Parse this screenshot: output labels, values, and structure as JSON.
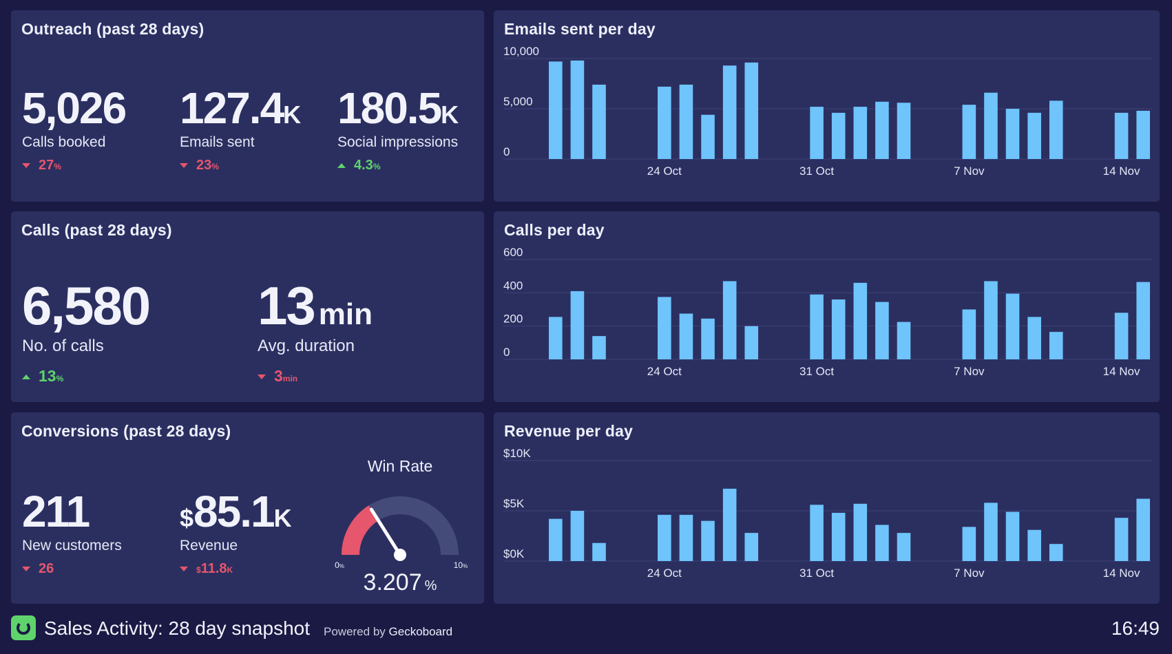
{
  "colors": {
    "background": "#1b1a45",
    "panel": "#2b2f60",
    "bar": "#6ec4fb",
    "negative": "#e6566c",
    "positive": "#5fd36b",
    "gauge_fill": "#e6566c",
    "gauge_track": "#454b79"
  },
  "outreach": {
    "title": "Outreach (past 28 days)",
    "metrics": [
      {
        "value": "5,026",
        "unit": "",
        "label": "Calls booked",
        "delta": "27",
        "delta_unit": "%",
        "direction": "down"
      },
      {
        "value": "127.4",
        "unit": "K",
        "label": "Emails sent",
        "delta": "23",
        "delta_unit": "%",
        "direction": "down"
      },
      {
        "value": "180.5",
        "unit": "K",
        "label": "Social impressions",
        "delta": "4.3",
        "delta_unit": "%",
        "direction": "up"
      }
    ]
  },
  "calls": {
    "title": "Calls (past 28 days)",
    "metrics": [
      {
        "value": "6,580",
        "unit": "",
        "label": "No. of calls",
        "delta": "13",
        "delta_unit": "%",
        "direction": "up"
      },
      {
        "value": "13",
        "unit": "min",
        "label": "Avg. duration",
        "delta": "3",
        "delta_unit": "min",
        "direction": "down"
      }
    ]
  },
  "conversions": {
    "title": "Conversions (past 28 days)",
    "customers": {
      "value": "211",
      "label": "New customers",
      "delta": "26",
      "direction": "down"
    },
    "revenue": {
      "prefix": "$",
      "value": "85.1",
      "unit": "K",
      "label": "Revenue",
      "delta_prefix": "$",
      "delta": "11.8",
      "delta_unit": "K",
      "direction": "down"
    },
    "win_rate": {
      "title": "Win Rate",
      "value": 3.207,
      "value_text": "3.207",
      "unit": "%",
      "min_label": "0",
      "max_label": "10",
      "min_unit": "%",
      "max_unit": "%",
      "min": 0,
      "max": 10
    }
  },
  "chart_data": [
    {
      "type": "bar",
      "title": "Emails sent per day",
      "ylim": [
        0,
        10000
      ],
      "y_ticks": [
        "10,000",
        "5,000",
        "0"
      ],
      "y_tick_values": [
        10000,
        5000,
        0
      ],
      "x_tick_labels": [
        "24 Oct",
        "31 Oct",
        "7 Nov",
        "14 Nov"
      ],
      "x_tick_days": [
        5,
        12,
        19,
        26
      ],
      "days": 28,
      "series": [
        {
          "values": [
            9700,
            9800,
            7400,
            0,
            0,
            7200,
            7400,
            4400,
            9300,
            9600,
            0,
            0,
            5200,
            4600,
            5200,
            5700,
            5600,
            0,
            0,
            5400,
            6600,
            5000,
            4600,
            5800,
            0,
            0,
            4600,
            4800
          ]
        }
      ]
    },
    {
      "type": "bar",
      "title": "Calls per day",
      "ylim": [
        0,
        600
      ],
      "y_ticks": [
        "600",
        "400",
        "200",
        "0"
      ],
      "y_tick_values": [
        600,
        400,
        200,
        0
      ],
      "x_tick_labels": [
        "24 Oct",
        "31 Oct",
        "7 Nov",
        "14 Nov"
      ],
      "x_tick_days": [
        5,
        12,
        19,
        26
      ],
      "days": 28,
      "series": [
        {
          "values": [
            255,
            410,
            140,
            0,
            0,
            375,
            275,
            245,
            470,
            200,
            0,
            0,
            390,
            360,
            460,
            345,
            225,
            0,
            0,
            300,
            470,
            395,
            255,
            165,
            0,
            0,
            280,
            465
          ]
        }
      ]
    },
    {
      "type": "bar",
      "title": "Revenue per day",
      "ylim": [
        0,
        10000
      ],
      "y_ticks": [
        "$10K",
        "$5K",
        "$0K"
      ],
      "y_tick_values": [
        10000,
        5000,
        0
      ],
      "x_tick_labels": [
        "24 Oct",
        "31 Oct",
        "7 Nov",
        "14 Nov"
      ],
      "x_tick_days": [
        5,
        12,
        19,
        26
      ],
      "days": 28,
      "series": [
        {
          "values": [
            4200,
            5000,
            1800,
            0,
            0,
            4600,
            4600,
            4000,
            7200,
            2800,
            0,
            0,
            5600,
            4800,
            5700,
            3600,
            2800,
            0,
            0,
            3400,
            5800,
            4900,
            3100,
            1700,
            0,
            0,
            4300,
            6200
          ]
        }
      ]
    }
  ],
  "footer": {
    "title": "Sales Activity: 28 day snapshot",
    "powered": "Powered by",
    "brand": "Geckoboard",
    "time": "16:49"
  }
}
